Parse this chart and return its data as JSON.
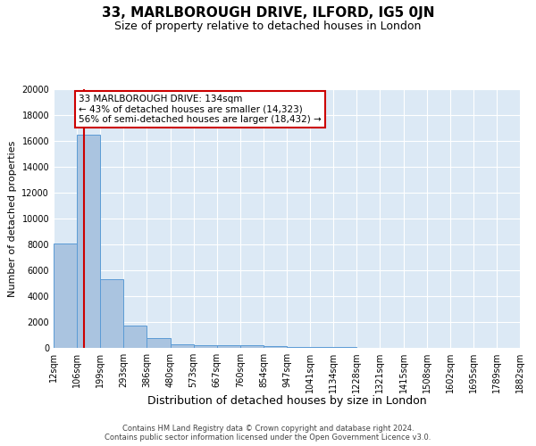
{
  "title": "33, MARLBOROUGH DRIVE, ILFORD, IG5 0JN",
  "subtitle": "Size of property relative to detached houses in London",
  "xlabel": "Distribution of detached houses by size in London",
  "ylabel": "Number of detached properties",
  "bin_edges": [
    12,
    106,
    199,
    293,
    386,
    480,
    573,
    667,
    760,
    854,
    947,
    1041,
    1134,
    1228,
    1321,
    1415,
    1508,
    1602,
    1695,
    1789,
    1882
  ],
  "bar_heights": [
    8100,
    16500,
    5300,
    1750,
    750,
    310,
    235,
    235,
    235,
    125,
    55,
    55,
    35,
    25,
    20,
    15,
    12,
    10,
    8,
    6
  ],
  "bar_color": "#aac4e0",
  "bar_edge_color": "#5b9bd5",
  "property_size": 134,
  "property_label": "33 MARLBOROUGH DRIVE: 134sqm",
  "annotation_line1": "← 43% of detached houses are smaller (14,323)",
  "annotation_line2": "56% of semi-detached houses are larger (18,432) →",
  "vline_color": "#cc0000",
  "ylim": [
    0,
    20000
  ],
  "yticks": [
    0,
    2000,
    4000,
    6000,
    8000,
    10000,
    12000,
    14000,
    16000,
    18000,
    20000
  ],
  "background_color": "#dce9f5",
  "grid_color": "#ffffff",
  "annotation_box_color": "#ffffff",
  "annotation_box_edge_color": "#cc0000",
  "footer_line1": "Contains HM Land Registry data © Crown copyright and database right 2024.",
  "footer_line2": "Contains public sector information licensed under the Open Government Licence v3.0.",
  "title_fontsize": 11,
  "subtitle_fontsize": 9,
  "tick_label_fontsize": 7,
  "ylabel_fontsize": 8,
  "xlabel_fontsize": 9
}
